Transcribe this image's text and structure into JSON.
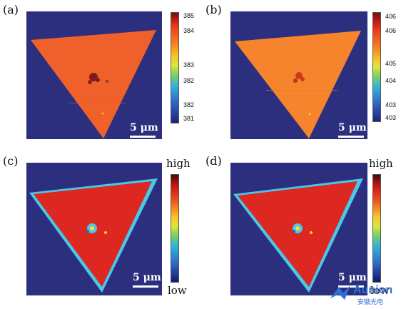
{
  "panels": [
    {
      "id": "a",
      "label": "(a)",
      "scale": "5 μm",
      "cbar_ticks": [
        "385",
        "384",
        "383",
        "382",
        "382",
        "381"
      ],
      "cbar_top": "",
      "cbar_bottom": ""
    },
    {
      "id": "b",
      "label": "(b)",
      "scale": "5 μm",
      "cbar_ticks": [
        "406",
        "406",
        "405",
        "404",
        "403",
        "403"
      ],
      "cbar_top": "",
      "cbar_bottom": ""
    },
    {
      "id": "c",
      "label": "(c)",
      "scale": "5 μm",
      "cbar_ticks": [],
      "cbar_top": "high",
      "cbar_bottom": "low"
    },
    {
      "id": "d",
      "label": "(d)",
      "scale": "5 μm",
      "cbar_ticks": [],
      "cbar_top": "high",
      "cbar_bottom": "low"
    }
  ],
  "colors": {
    "background": "#2b2f7e",
    "fill_a": "#f0602a",
    "fill_b": "#f6842c",
    "fill_cd": "#dc2820",
    "edge_cd": "#49c8e8"
  },
  "watermark": {
    "brand": "Aunion",
    "sub": "安徽光电",
    "icon": "bird-logo-icon"
  }
}
